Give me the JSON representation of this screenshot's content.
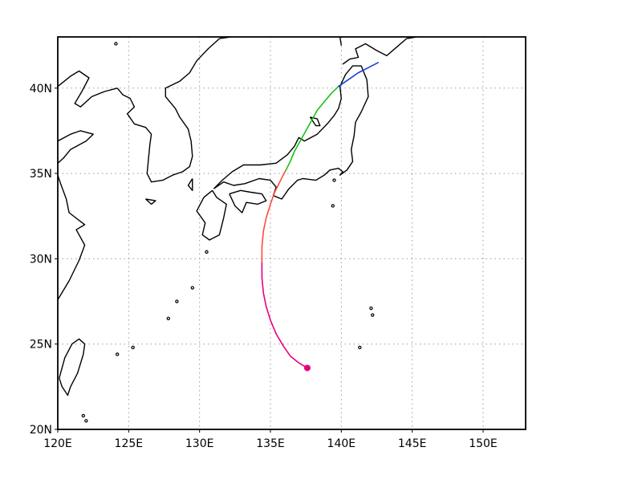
{
  "map": {
    "lon_range": [
      120,
      153
    ],
    "lat_range": [
      20,
      43
    ],
    "lon_ticks": [
      {
        "value": 120,
        "label": "120E"
      },
      {
        "value": 125,
        "label": "125E"
      },
      {
        "value": 130,
        "label": "130E"
      },
      {
        "value": 135,
        "label": "135E"
      },
      {
        "value": 140,
        "label": "140E"
      },
      {
        "value": 145,
        "label": "145E"
      },
      {
        "value": 150,
        "label": "150E"
      }
    ],
    "lat_ticks": [
      {
        "value": 20,
        "label": "20N"
      },
      {
        "value": 25,
        "label": "25N"
      },
      {
        "value": 30,
        "label": "30N"
      },
      {
        "value": 35,
        "label": "35N"
      },
      {
        "value": 40,
        "label": "40N"
      }
    ],
    "grid": "dotted",
    "coastline_color": "#000000"
  },
  "track": {
    "genesis_point": {
      "lon": 137.6,
      "lat": 23.6,
      "color": "#e6007e"
    },
    "segments": [
      {
        "color": "#e6007e",
        "points": [
          [
            137.6,
            23.6
          ],
          [
            137.0,
            23.9
          ],
          [
            136.4,
            24.3
          ],
          [
            135.9,
            24.9
          ],
          [
            135.4,
            25.6
          ],
          [
            135.0,
            26.4
          ],
          [
            134.7,
            27.2
          ],
          [
            134.5,
            28.0
          ],
          [
            134.4,
            28.9
          ],
          [
            134.4,
            29.8
          ]
        ]
      },
      {
        "color": "#ff4a3d",
        "points": [
          [
            134.4,
            29.8
          ],
          [
            134.4,
            30.7
          ],
          [
            134.5,
            31.6
          ],
          [
            134.7,
            32.4
          ],
          [
            135.0,
            33.2
          ],
          [
            135.3,
            33.9
          ],
          [
            135.6,
            34.4
          ],
          [
            135.9,
            34.9
          ],
          [
            136.1,
            35.2
          ]
        ]
      },
      {
        "color": "#17c11a",
        "points": [
          [
            136.1,
            35.2
          ],
          [
            136.4,
            35.7
          ],
          [
            136.7,
            36.3
          ],
          [
            137.1,
            36.9
          ],
          [
            137.5,
            37.5
          ],
          [
            137.9,
            38.1
          ],
          [
            138.3,
            38.7
          ],
          [
            138.8,
            39.2
          ],
          [
            139.3,
            39.7
          ],
          [
            139.8,
            40.1
          ]
        ]
      },
      {
        "color": "#1a3fd8",
        "points": [
          [
            139.8,
            40.1
          ],
          [
            140.5,
            40.5
          ],
          [
            141.2,
            40.9
          ],
          [
            141.9,
            41.2
          ],
          [
            142.6,
            41.5
          ]
        ]
      }
    ]
  },
  "coastlines": [
    [
      [
        120,
        27.6
      ],
      [
        120.8,
        28.7
      ],
      [
        121.5,
        29.9
      ],
      [
        121.9,
        30.8
      ],
      [
        121.3,
        31.7
      ],
      [
        121.9,
        32.0
      ],
      [
        120.8,
        32.7
      ],
      [
        120.6,
        33.5
      ],
      [
        120.2,
        34.4
      ],
      [
        120,
        34.9
      ]
    ],
    [
      [
        120,
        36.9
      ],
      [
        120.9,
        37.3
      ],
      [
        121.6,
        37.5
      ],
      [
        122.5,
        37.3
      ],
      [
        122.0,
        36.9
      ],
      [
        120.9,
        36.4
      ],
      [
        120.4,
        35.9
      ],
      [
        120,
        35.6
      ]
    ],
    [
      [
        120,
        40.1
      ],
      [
        120.9,
        40.7
      ],
      [
        121.5,
        41.0
      ],
      [
        122.2,
        40.6
      ],
      [
        121.7,
        39.8
      ],
      [
        121.2,
        39.1
      ],
      [
        121.6,
        38.9
      ],
      [
        122.4,
        39.5
      ],
      [
        123.3,
        39.8
      ],
      [
        124.2,
        40.0
      ]
    ],
    [
      [
        124.2,
        40.0
      ],
      [
        124.6,
        39.6
      ],
      [
        125.1,
        39.4
      ],
      [
        125.4,
        38.9
      ],
      [
        124.9,
        38.5
      ],
      [
        125.4,
        37.9
      ],
      [
        126.2,
        37.7
      ],
      [
        126.6,
        37.3
      ],
      [
        126.5,
        36.7
      ],
      [
        126.4,
        35.9
      ],
      [
        126.3,
        35.0
      ],
      [
        126.6,
        34.5
      ],
      [
        127.4,
        34.6
      ],
      [
        128.1,
        34.9
      ],
      [
        128.8,
        35.1
      ],
      [
        129.3,
        35.4
      ],
      [
        129.5,
        36.0
      ],
      [
        129.4,
        36.9
      ],
      [
        129.2,
        37.6
      ],
      [
        128.6,
        38.3
      ],
      [
        128.3,
        38.8
      ],
      [
        127.6,
        39.5
      ],
      [
        127.6,
        40.0
      ],
      [
        128.6,
        40.4
      ],
      [
        129.3,
        40.9
      ],
      [
        129.8,
        41.6
      ],
      [
        130.6,
        42.3
      ],
      [
        131.4,
        42.9
      ],
      [
        132.2,
        43.0
      ]
    ],
    [
      [
        130.9,
        34.0
      ],
      [
        131.2,
        33.6
      ],
      [
        131.9,
        33.2
      ],
      [
        131.7,
        32.4
      ],
      [
        131.4,
        31.4
      ],
      [
        130.7,
        31.1
      ],
      [
        130.2,
        31.4
      ],
      [
        130.4,
        32.1
      ],
      [
        129.8,
        32.8
      ],
      [
        130.3,
        33.6
      ],
      [
        130.9,
        34.0
      ]
    ],
    [
      [
        131.0,
        34.1
      ],
      [
        131.7,
        34.5
      ],
      [
        132.4,
        34.3
      ],
      [
        133.2,
        34.4
      ],
      [
        134.2,
        34.7
      ],
      [
        135.0,
        34.6
      ],
      [
        135.4,
        34.2
      ],
      [
        135.2,
        33.7
      ],
      [
        135.8,
        33.5
      ],
      [
        136.3,
        34.1
      ],
      [
        136.9,
        34.6
      ],
      [
        137.3,
        34.7
      ],
      [
        138.2,
        34.6
      ],
      [
        138.8,
        34.9
      ],
      [
        139.2,
        35.2
      ],
      [
        139.8,
        35.3
      ],
      [
        140.1,
        35.1
      ],
      [
        139.9,
        34.9
      ],
      [
        140.4,
        35.2
      ],
      [
        140.8,
        35.7
      ],
      [
        140.7,
        36.4
      ],
      [
        140.9,
        37.2
      ],
      [
        141.0,
        38.0
      ],
      [
        141.4,
        38.6
      ],
      [
        141.9,
        39.5
      ],
      [
        141.8,
        40.5
      ],
      [
        141.4,
        41.3
      ],
      [
        140.8,
        41.3
      ],
      [
        140.3,
        40.8
      ],
      [
        139.9,
        40.1
      ],
      [
        140.0,
        39.4
      ],
      [
        139.8,
        38.8
      ],
      [
        139.5,
        38.4
      ],
      [
        139.0,
        37.9
      ],
      [
        138.3,
        37.3
      ],
      [
        137.4,
        36.9
      ],
      [
        137.0,
        37.1
      ],
      [
        136.7,
        36.6
      ],
      [
        136.2,
        36.1
      ],
      [
        135.4,
        35.6
      ],
      [
        134.3,
        35.5
      ],
      [
        133.1,
        35.5
      ],
      [
        132.3,
        35.1
      ],
      [
        131.6,
        34.6
      ],
      [
        131.0,
        34.1
      ]
    ],
    [
      [
        132.1,
        33.8
      ],
      [
        132.9,
        34.0
      ],
      [
        133.6,
        33.9
      ],
      [
        134.4,
        33.8
      ],
      [
        134.7,
        33.4
      ],
      [
        134.1,
        33.2
      ],
      [
        133.3,
        33.3
      ],
      [
        133.0,
        32.7
      ],
      [
        132.5,
        33.1
      ],
      [
        132.1,
        33.8
      ]
    ],
    [
      [
        140.1,
        41.4
      ],
      [
        140.6,
        41.7
      ],
      [
        141.2,
        41.8
      ],
      [
        141.0,
        42.3
      ],
      [
        141.7,
        42.6
      ],
      [
        142.5,
        42.2
      ],
      [
        143.2,
        41.9
      ],
      [
        143.9,
        42.4
      ],
      [
        144.6,
        42.9
      ],
      [
        145.3,
        43.0
      ]
    ],
    [
      [
        140.0,
        42.5
      ],
      [
        139.9,
        43.0
      ]
    ],
    [
      [
        120.1,
        23.0
      ],
      [
        120.3,
        22.5
      ],
      [
        120.7,
        22.0
      ],
      [
        120.9,
        22.5
      ],
      [
        121.4,
        23.3
      ],
      [
        121.8,
        24.4
      ],
      [
        121.9,
        25.0
      ],
      [
        121.5,
        25.3
      ],
      [
        121.0,
        25.0
      ],
      [
        120.5,
        24.2
      ],
      [
        120.1,
        23.0
      ]
    ],
    [
      [
        137.8,
        38.3
      ],
      [
        138.3,
        38.2
      ],
      [
        138.5,
        37.8
      ],
      [
        138.2,
        37.8
      ],
      [
        137.8,
        38.3
      ]
    ],
    [
      [
        129.5,
        34.7
      ],
      [
        129.2,
        34.3
      ],
      [
        129.5,
        34.0
      ],
      [
        129.5,
        34.7
      ]
    ],
    [
      [
        126.2,
        33.5
      ],
      [
        126.9,
        33.4
      ],
      [
        126.6,
        33.2
      ],
      [
        126.2,
        33.5
      ]
    ]
  ],
  "islands": [
    [
      124.2,
      24.4
    ],
    [
      125.3,
      24.8
    ],
    [
      127.8,
      26.5
    ],
    [
      128.4,
      27.5
    ],
    [
      129.5,
      28.3
    ],
    [
      130.5,
      30.4
    ],
    [
      139.4,
      33.1
    ],
    [
      141.3,
      24.8
    ],
    [
      142.2,
      26.7
    ],
    [
      142.1,
      27.1
    ],
    [
      121.8,
      20.8
    ],
    [
      122.0,
      20.5
    ],
    [
      124.1,
      42.6
    ],
    [
      139.5,
      34.6
    ]
  ]
}
